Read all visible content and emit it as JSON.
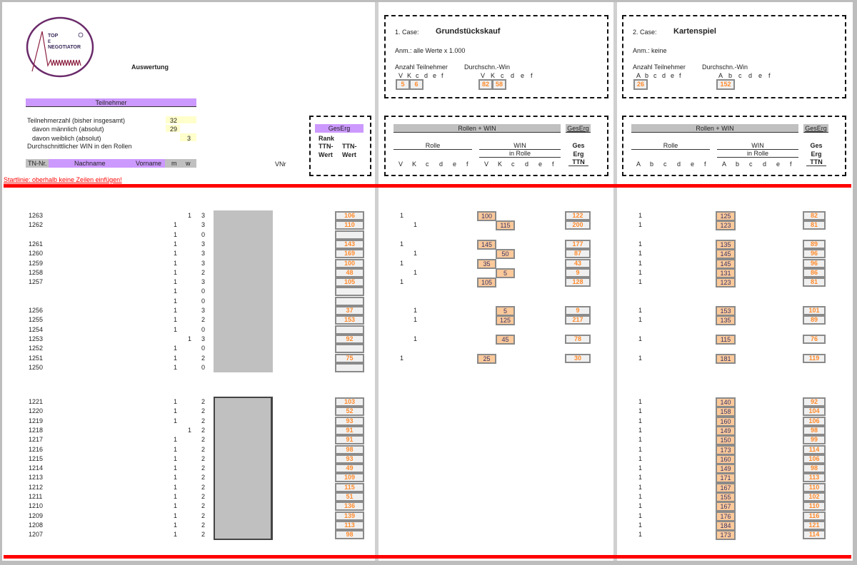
{
  "header": {
    "logo_text": [
      "TOP",
      "E",
      "NEGOTIATOR"
    ],
    "title": "Auswertung"
  },
  "participants": {
    "section_label": "Teilnehmer",
    "total_label": "Teilnehmerzahl (bisher insgesamt)",
    "total": "32",
    "male_label": "davon männlich (absolut)",
    "male": "29",
    "female_label": "davon weiblich (absolut)",
    "female": "3",
    "avg_label": "Durchschnittlicher WIN in den Rollen"
  },
  "table_header": {
    "tn": "TN-Nr.",
    "nachname": "Nachname",
    "vorname": "Vorname",
    "m": "m",
    "w": "w",
    "vnr": "VNr"
  },
  "gesamt": {
    "label": "GesErg",
    "rank": "Rank",
    "ttn1": "TTN-",
    "wert1": "Wert",
    "ttn2": "TTN-",
    "wert2": "Wert"
  },
  "startline": "Startlinie: oberhalb keine Zeilen einfügen!",
  "case1": {
    "label": "1. Case:",
    "name": "Grundstückskauf",
    "note": "Anm.: alle Werte x 1.000",
    "count_label": "Anzahl Teilnehmer",
    "avg_label": "Durchschn.-Win",
    "roles": [
      "V",
      "K",
      "c",
      "d",
      "e",
      "f"
    ],
    "counts": [
      "5",
      "6"
    ],
    "avgs": [
      "82",
      "58"
    ],
    "bar": "Rollen + WIN",
    "ges": "GesErg",
    "rolle": "Rolle",
    "win": "WIN",
    "in_rolle": "in Rolle",
    "ges_a": "Ges",
    "ges_b": "Erg",
    "ges_c": "TTN"
  },
  "case2": {
    "label": "2. Case:",
    "name": "Kartenspiel",
    "note": "Anm.: keine",
    "count_label": "Anzahl Teilnehmer",
    "avg_label": "Durchschn.-Win",
    "roles": [
      "A",
      "b",
      "c",
      "d",
      "e",
      "f"
    ],
    "counts": [
      "26"
    ],
    "avgs": [
      "152"
    ],
    "bar": "Rollen + WIN",
    "ges": "GesErg",
    "rolle": "Rolle",
    "win": "WIN",
    "in_rolle": "in Rolle",
    "ges_a": "Ges",
    "ges_b": "Erg",
    "ges_c": "TTN"
  },
  "colors": {
    "accent_purple": "#cc99ff",
    "value_orange": "#ff8a2a",
    "win_fill": "#fcc99a",
    "startline_red": "#ff0000"
  },
  "groups": [
    {
      "rows": [
        {
          "tn": "1263",
          "m": "",
          "w": "1",
          "n": "3",
          "ges": "106",
          "r1": "V",
          "w1": "100",
          "t1": "122",
          "a2": "1",
          "w2": "125",
          "t2": "82"
        },
        {
          "tn": "1262",
          "m": "1",
          "w": "",
          "n": "3",
          "ges": "110",
          "r1": "K",
          "w1": "115",
          "t1": "200",
          "a2": "1",
          "w2": "123",
          "t2": "81"
        },
        {
          "tn": "",
          "m": "1",
          "w": "",
          "n": "0",
          "ges": "",
          "r1": "",
          "w1": "",
          "t1": "",
          "a2": "",
          "w2": "",
          "t2": ""
        },
        {
          "tn": "1261",
          "m": "1",
          "w": "",
          "n": "3",
          "ges": "143",
          "r1": "V",
          "w1": "145",
          "t1": "177",
          "a2": "1",
          "w2": "135",
          "t2": "89"
        },
        {
          "tn": "1260",
          "m": "1",
          "w": "",
          "n": "3",
          "ges": "169",
          "r1": "K",
          "w1": "50",
          "t1": "87",
          "a2": "1",
          "w2": "145",
          "t2": "96"
        },
        {
          "tn": "1259",
          "m": "1",
          "w": "",
          "n": "3",
          "ges": "100",
          "r1": "V",
          "w1": "35",
          "t1": "43",
          "a2": "1",
          "w2": "145",
          "t2": "96"
        },
        {
          "tn": "1258",
          "m": "1",
          "w": "",
          "n": "2",
          "ges": "48",
          "r1": "K",
          "w1": "5",
          "t1": "9",
          "a2": "1",
          "w2": "131",
          "t2": "86"
        },
        {
          "tn": "1257",
          "m": "1",
          "w": "",
          "n": "3",
          "ges": "105",
          "r1": "V",
          "w1": "105",
          "t1": "128",
          "a2": "1",
          "w2": "123",
          "t2": "81"
        },
        {
          "tn": "",
          "m": "1",
          "w": "",
          "n": "0",
          "ges": "",
          "r1": "",
          "w1": "",
          "t1": "",
          "a2": "",
          "w2": "",
          "t2": ""
        },
        {
          "tn": "",
          "m": "1",
          "w": "",
          "n": "0",
          "ges": "",
          "r1": "",
          "w1": "",
          "t1": "",
          "a2": "",
          "w2": "",
          "t2": ""
        },
        {
          "tn": "1256",
          "m": "1",
          "w": "",
          "n": "3",
          "ges": "37",
          "r1": "K",
          "w1": "5",
          "t1": "9",
          "a2": "1",
          "w2": "153",
          "t2": "101"
        },
        {
          "tn": "1255",
          "m": "1",
          "w": "",
          "n": "2",
          "ges": "153",
          "r1": "K",
          "w1": "125",
          "t1": "217",
          "a2": "1",
          "w2": "135",
          "t2": "89"
        },
        {
          "tn": "1254",
          "m": "1",
          "w": "",
          "n": "0",
          "ges": "",
          "r1": "",
          "w1": "",
          "t1": "",
          "a2": "",
          "w2": "",
          "t2": ""
        },
        {
          "tn": "1253",
          "m": "",
          "w": "1",
          "n": "3",
          "ges": "92",
          "r1": "K",
          "w1": "45",
          "t1": "78",
          "a2": "1",
          "w2": "115",
          "t2": "76"
        },
        {
          "tn": "1252",
          "m": "1",
          "w": "",
          "n": "0",
          "ges": "",
          "r1": "",
          "w1": "",
          "t1": "",
          "a2": "",
          "w2": "",
          "t2": ""
        },
        {
          "tn": "1251",
          "m": "1",
          "w": "",
          "n": "2",
          "ges": "75",
          "r1": "V",
          "w1": "25",
          "t1": "30",
          "a2": "1",
          "w2": "181",
          "t2": "119"
        },
        {
          "tn": "1250",
          "m": "1",
          "w": "",
          "n": "0",
          "ges": "",
          "r1": "",
          "w1": "",
          "t1": "",
          "a2": "",
          "w2": "",
          "t2": ""
        }
      ]
    },
    {
      "rows": [
        {
          "tn": "1221",
          "m": "1",
          "w": "",
          "n": "2",
          "ges": "103",
          "r1": "",
          "w1": "",
          "t1": "",
          "a2": "1",
          "w2": "140",
          "t2": "92"
        },
        {
          "tn": "1220",
          "m": "1",
          "w": "",
          "n": "2",
          "ges": "52",
          "r1": "",
          "w1": "",
          "t1": "",
          "a2": "1",
          "w2": "158",
          "t2": "104"
        },
        {
          "tn": "1219",
          "m": "1",
          "w": "",
          "n": "2",
          "ges": "93",
          "r1": "",
          "w1": "",
          "t1": "",
          "a2": "1",
          "w2": "160",
          "t2": "106"
        },
        {
          "tn": "1218",
          "m": "",
          "w": "1",
          "n": "2",
          "ges": "91",
          "r1": "",
          "w1": "",
          "t1": "",
          "a2": "1",
          "w2": "149",
          "t2": "98"
        },
        {
          "tn": "1217",
          "m": "1",
          "w": "",
          "n": "2",
          "ges": "91",
          "r1": "",
          "w1": "",
          "t1": "",
          "a2": "1",
          "w2": "150",
          "t2": "99"
        },
        {
          "tn": "1216",
          "m": "1",
          "w": "",
          "n": "2",
          "ges": "98",
          "r1": "",
          "w1": "",
          "t1": "",
          "a2": "1",
          "w2": "173",
          "t2": "114"
        },
        {
          "tn": "1215",
          "m": "1",
          "w": "",
          "n": "2",
          "ges": "93",
          "r1": "",
          "w1": "",
          "t1": "",
          "a2": "1",
          "w2": "160",
          "t2": "106"
        },
        {
          "tn": "1214",
          "m": "1",
          "w": "",
          "n": "2",
          "ges": "49",
          "r1": "",
          "w1": "",
          "t1": "",
          "a2": "1",
          "w2": "149",
          "t2": "98"
        },
        {
          "tn": "1213",
          "m": "1",
          "w": "",
          "n": "2",
          "ges": "109",
          "r1": "",
          "w1": "",
          "t1": "",
          "a2": "1",
          "w2": "171",
          "t2": "113"
        },
        {
          "tn": "1212",
          "m": "1",
          "w": "",
          "n": "2",
          "ges": "115",
          "r1": "",
          "w1": "",
          "t1": "",
          "a2": "1",
          "w2": "167",
          "t2": "110"
        },
        {
          "tn": "1211",
          "m": "1",
          "w": "",
          "n": "2",
          "ges": "51",
          "r1": "",
          "w1": "",
          "t1": "",
          "a2": "1",
          "w2": "155",
          "t2": "102"
        },
        {
          "tn": "1210",
          "m": "1",
          "w": "",
          "n": "2",
          "ges": "136",
          "r1": "",
          "w1": "",
          "t1": "",
          "a2": "1",
          "w2": "167",
          "t2": "110"
        },
        {
          "tn": "1209",
          "m": "1",
          "w": "",
          "n": "2",
          "ges": "139",
          "r1": "",
          "w1": "",
          "t1": "",
          "a2": "1",
          "w2": "176",
          "t2": "116"
        },
        {
          "tn": "1208",
          "m": "1",
          "w": "",
          "n": "2",
          "ges": "113",
          "r1": "",
          "w1": "",
          "t1": "",
          "a2": "1",
          "w2": "184",
          "t2": "121"
        },
        {
          "tn": "1207",
          "m": "1",
          "w": "",
          "n": "2",
          "ges": "98",
          "r1": "",
          "w1": "",
          "t1": "",
          "a2": "1",
          "w2": "173",
          "t2": "114"
        }
      ]
    }
  ]
}
